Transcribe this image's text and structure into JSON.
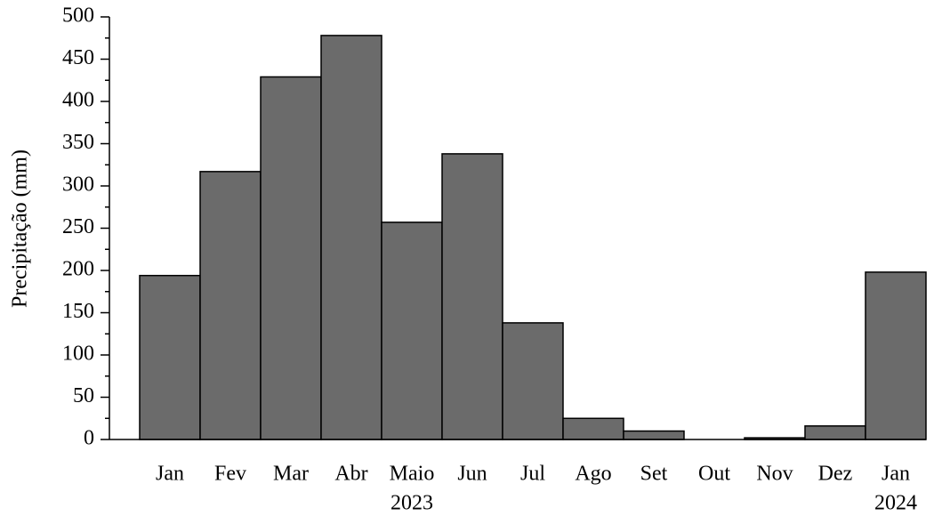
{
  "chart_data": {
    "type": "bar",
    "y_axis_label": "Precipitação (mm)",
    "categories": [
      "Jan",
      "Fev",
      "Mar",
      "Abr",
      "Maio",
      "Jun",
      "Jul",
      "Ago",
      "Set",
      "Out",
      "Nov",
      "Dez",
      "Jan"
    ],
    "values": [
      194,
      317,
      429,
      478,
      257,
      338,
      138,
      25,
      10,
      0,
      2,
      16,
      198
    ],
    "annotations": [
      "2023",
      "2024"
    ],
    "color": "#6b6b6b",
    "ylim": [
      0,
      500
    ],
    "yticks": [
      0,
      50,
      100,
      150,
      200,
      250,
      300,
      350,
      400,
      450,
      500
    ],
    "yminorticks": [
      25,
      75,
      125,
      175,
      225,
      275,
      325,
      375,
      425,
      475
    ],
    "grid": false
  }
}
